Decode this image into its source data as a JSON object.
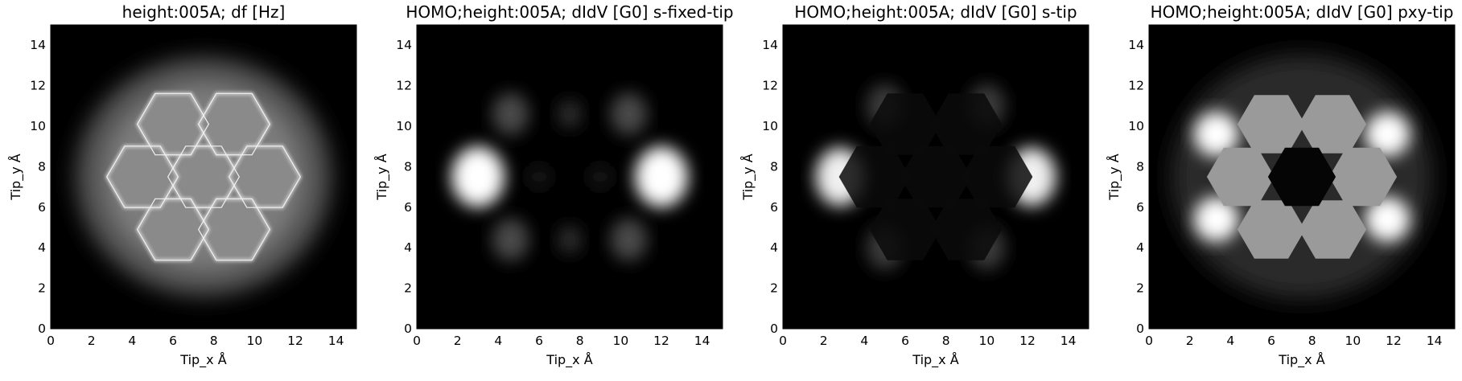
{
  "chart_data": [
    {
      "type": "heatmap",
      "title": "height:005A; df [Hz]",
      "xlabel": "Tip_x Å",
      "ylabel": "Tip_y Å",
      "xlim": [
        0,
        15
      ],
      "ylim": [
        0,
        15
      ],
      "xticks": [
        "0",
        "2",
        "4",
        "6",
        "8",
        "10",
        "12",
        "14"
      ],
      "yticks": [
        "0",
        "2",
        "4",
        "6",
        "8",
        "10",
        "12",
        "14"
      ],
      "colormap": "gray",
      "pattern": "honeycomb-7-ring",
      "grid": false
    },
    {
      "type": "heatmap",
      "title": "HOMO;height:005A; dIdV [G0] s-fixed-tip",
      "xlabel": "Tip_x Å",
      "ylabel": "Tip_y Å",
      "xlim": [
        0,
        15
      ],
      "ylim": [
        0,
        15
      ],
      "xticks": [
        "0",
        "2",
        "4",
        "6",
        "8",
        "10",
        "12",
        "14"
      ],
      "yticks": [
        "0",
        "2",
        "4",
        "6",
        "8",
        "10",
        "12",
        "14"
      ],
      "colormap": "gray",
      "pattern": "two-lobes-at-x3-x12",
      "grid": false
    },
    {
      "type": "heatmap",
      "title": "HOMO;height:005A; dIdV [G0] s-tip",
      "xlabel": "Tip_x Å",
      "ylabel": "Tip_y Å",
      "xlim": [
        0,
        15
      ],
      "ylim": [
        0,
        15
      ],
      "xticks": [
        "0",
        "2",
        "4",
        "6",
        "8",
        "10",
        "12",
        "14"
      ],
      "yticks": [
        "0",
        "2",
        "4",
        "6",
        "8",
        "10",
        "12",
        "14"
      ],
      "colormap": "gray",
      "pattern": "lobes-with-hexagon-masks",
      "grid": false
    },
    {
      "type": "heatmap",
      "title": "HOMO;height:005A; dIdV [G0] pxy-tip",
      "xlabel": "Tip_x Å",
      "ylabel": "Tip_y Å",
      "xlim": [
        0,
        15
      ],
      "ylim": [
        0,
        15
      ],
      "xticks": [
        "0",
        "2",
        "4",
        "6",
        "8",
        "10",
        "12",
        "14"
      ],
      "yticks": [
        "0",
        "2",
        "4",
        "6",
        "8",
        "10",
        "12",
        "14"
      ],
      "colormap": "gray",
      "pattern": "six-bright-hexagons-ring",
      "grid": false
    }
  ]
}
